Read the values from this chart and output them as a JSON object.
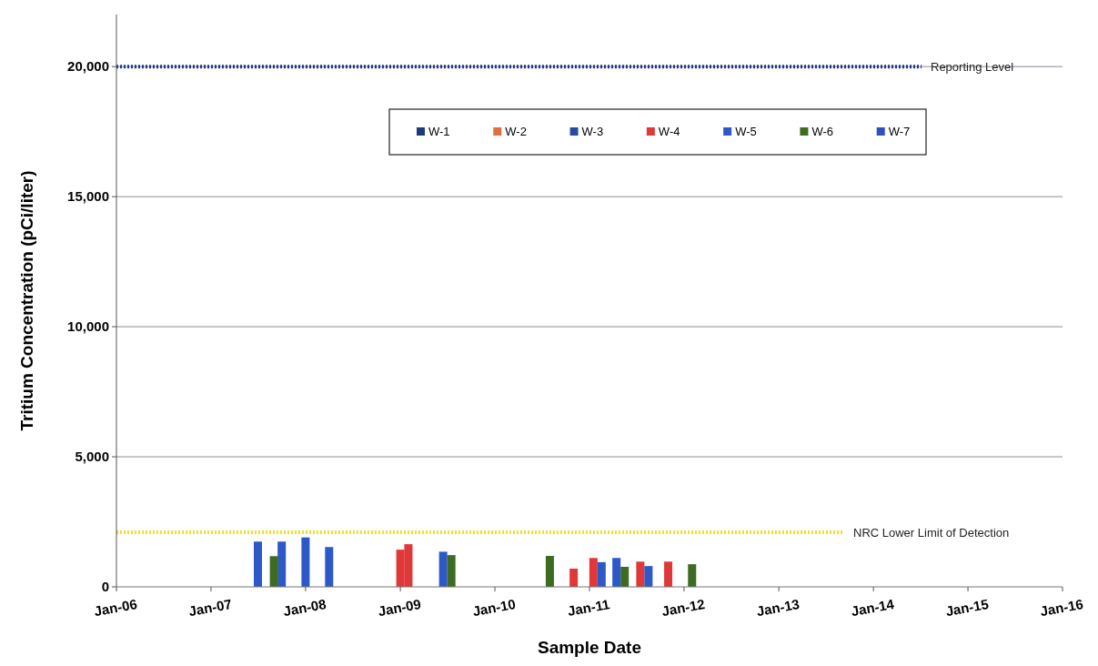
{
  "chart_data": {
    "type": "bar",
    "xlabel": "Sample Date",
    "ylabel": "Tritium Concentration (pCi/liter)",
    "xlim": [
      "2006-01-01",
      "2016-01-01"
    ],
    "xticks": [
      {
        "value": "2006-01",
        "label": "Jan-06"
      },
      {
        "value": "2007-01",
        "label": "Jan-07"
      },
      {
        "value": "2008-01",
        "label": "Jan-08"
      },
      {
        "value": "2009-01",
        "label": "Jan-09"
      },
      {
        "value": "2010-01",
        "label": "Jan-10"
      },
      {
        "value": "2011-01",
        "label": "Jan-11"
      },
      {
        "value": "2012-01",
        "label": "Jan-12"
      },
      {
        "value": "2013-01",
        "label": "Jan-13"
      },
      {
        "value": "2014-01",
        "label": "Jan-14"
      },
      {
        "value": "2015-01",
        "label": "Jan-15"
      },
      {
        "value": "2016-01",
        "label": "Jan-16"
      }
    ],
    "ylim": [
      0,
      22000
    ],
    "yticks": [
      {
        "value": 0,
        "label": "0"
      },
      {
        "value": 5000,
        "label": "5,000"
      },
      {
        "value": 10000,
        "label": "10,000"
      },
      {
        "value": 15000,
        "label": "15,000"
      },
      {
        "value": 20000,
        "label": "20,000"
      }
    ],
    "grid": "y",
    "legend": "top",
    "series": [
      {
        "name": "W-1",
        "color": "#1f3a7a"
      },
      {
        "name": "W-2",
        "color": "#e07040"
      },
      {
        "name": "W-3",
        "color": "#2a4aa0"
      },
      {
        "name": "W-4",
        "color": "#e03838",
        "x": [
          "2009-01",
          "2009-02",
          "2010-11",
          "2011-02",
          "2011-08",
          "2011-11"
        ],
        "values": [
          1430,
          1640,
          700,
          1110,
          970,
          970
        ]
      },
      {
        "name": "W-5",
        "color": "#2c58c8",
        "x": [
          "2007-07",
          "2007-10",
          "2008-01",
          "2008-04",
          "2009-07",
          "2011-02",
          "2011-05",
          "2011-08"
        ],
        "values": [
          1740,
          1740,
          1900,
          1530,
          1350,
          950,
          1110,
          800
        ]
      },
      {
        "name": "W-6",
        "color": "#3d6b22",
        "x": [
          "2007-09",
          "2009-07",
          "2010-08",
          "2011-05",
          "2012-02"
        ],
        "values": [
          1180,
          1220,
          1190,
          770,
          870
        ]
      },
      {
        "name": "W-7",
        "color": "#3050c0"
      }
    ],
    "ref_lines": [
      {
        "axis": "y",
        "value": 20000,
        "label": "Reporting Level",
        "color": "#1f3a8a",
        "line_style": "dotted"
      },
      {
        "axis": "y",
        "value": 2100,
        "label": "NRC Lower Limit of Detection",
        "color": "#f0e020",
        "line_style": "dotted"
      }
    ]
  }
}
